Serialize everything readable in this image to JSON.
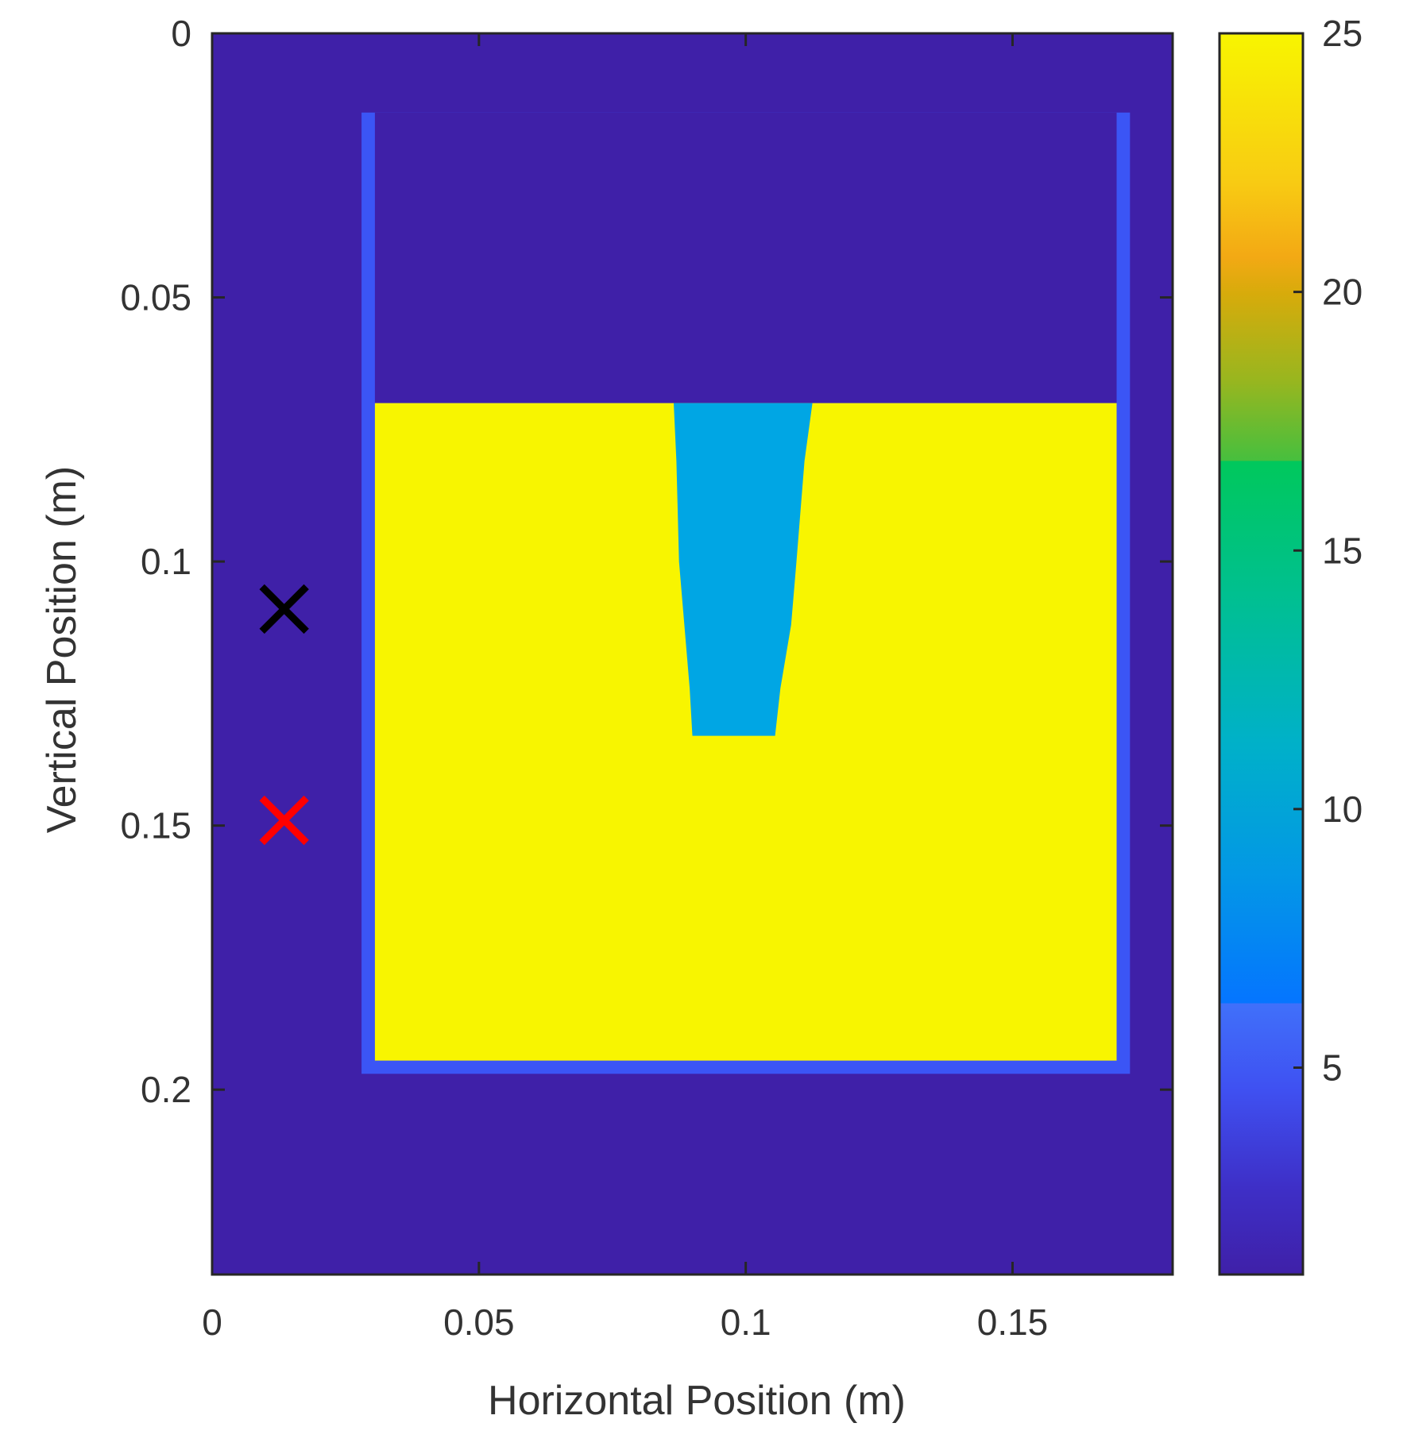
{
  "chart_data": {
    "type": "heatmap",
    "title": "",
    "xlabel": "Horizontal Position (m)",
    "ylabel": "Vertical Position (m)",
    "xlim": [
      0,
      0.18
    ],
    "ylim": [
      0,
      0.235
    ],
    "y_reversed": true,
    "x_ticks": [
      {
        "value": 0,
        "label": "0"
      },
      {
        "value": 0.05,
        "label": "0.05"
      },
      {
        "value": 0.1,
        "label": "0.1"
      },
      {
        "value": 0.15,
        "label": "0.15"
      }
    ],
    "y_ticks": [
      {
        "value": 0,
        "label": "0"
      },
      {
        "value": 0.05,
        "label": "0.05"
      },
      {
        "value": 0.1,
        "label": "0.1"
      },
      {
        "value": 0.15,
        "label": "0.15"
      },
      {
        "value": 0.2,
        "label": "0.2"
      }
    ],
    "colorbar": {
      "range": [
        1,
        25
      ],
      "ticks": [
        {
          "value": 5,
          "label": "5"
        },
        {
          "value": 10,
          "label": "10"
        },
        {
          "value": 15,
          "label": "15"
        },
        {
          "value": 20,
          "label": "20"
        },
        {
          "value": 25,
          "label": "25"
        }
      ]
    },
    "regions": [
      {
        "name": "background",
        "value": 1,
        "color": "#3f20a8",
        "polygon": [
          [
            0,
            0
          ],
          [
            0.18,
            0
          ],
          [
            0.18,
            0.235
          ],
          [
            0,
            0.235
          ]
        ]
      },
      {
        "name": "container-wall",
        "value": 4,
        "color": "#3b55f5",
        "polygon": [
          [
            0.028,
            0.015
          ],
          [
            0.172,
            0.015
          ],
          [
            0.172,
            0.197
          ],
          [
            0.028,
            0.197
          ]
        ]
      },
      {
        "name": "container-interior",
        "value": 1,
        "color": "#3f20a8",
        "polygon": [
          [
            0.0305,
            0.015
          ],
          [
            0.1695,
            0.015
          ],
          [
            0.1695,
            0.07
          ],
          [
            0.0305,
            0.07
          ]
        ]
      },
      {
        "name": "fill-material",
        "value": 25,
        "color": "#f8f500",
        "polygon": [
          [
            0.0305,
            0.07
          ],
          [
            0.1695,
            0.07
          ],
          [
            0.1695,
            0.1945
          ],
          [
            0.0305,
            0.1945
          ]
        ]
      },
      {
        "name": "inclusion",
        "value": 9,
        "color": "#00a6e4",
        "polygon": [
          [
            0.0865,
            0.07
          ],
          [
            0.1125,
            0.07
          ],
          [
            0.111,
            0.081
          ],
          [
            0.1095,
            0.1
          ],
          [
            0.1085,
            0.112
          ],
          [
            0.1065,
            0.124
          ],
          [
            0.1055,
            0.133
          ],
          [
            0.09,
            0.133
          ],
          [
            0.0895,
            0.124
          ],
          [
            0.0885,
            0.112
          ],
          [
            0.0875,
            0.1
          ],
          [
            0.087,
            0.081
          ]
        ]
      }
    ],
    "markers": [
      {
        "name": "black-marker",
        "x": 0.0135,
        "y": 0.109,
        "symbol": "x",
        "color": "#000000"
      },
      {
        "name": "red-marker",
        "x": 0.0135,
        "y": 0.149,
        "symbol": "x",
        "color": "#ff0000"
      }
    ]
  }
}
